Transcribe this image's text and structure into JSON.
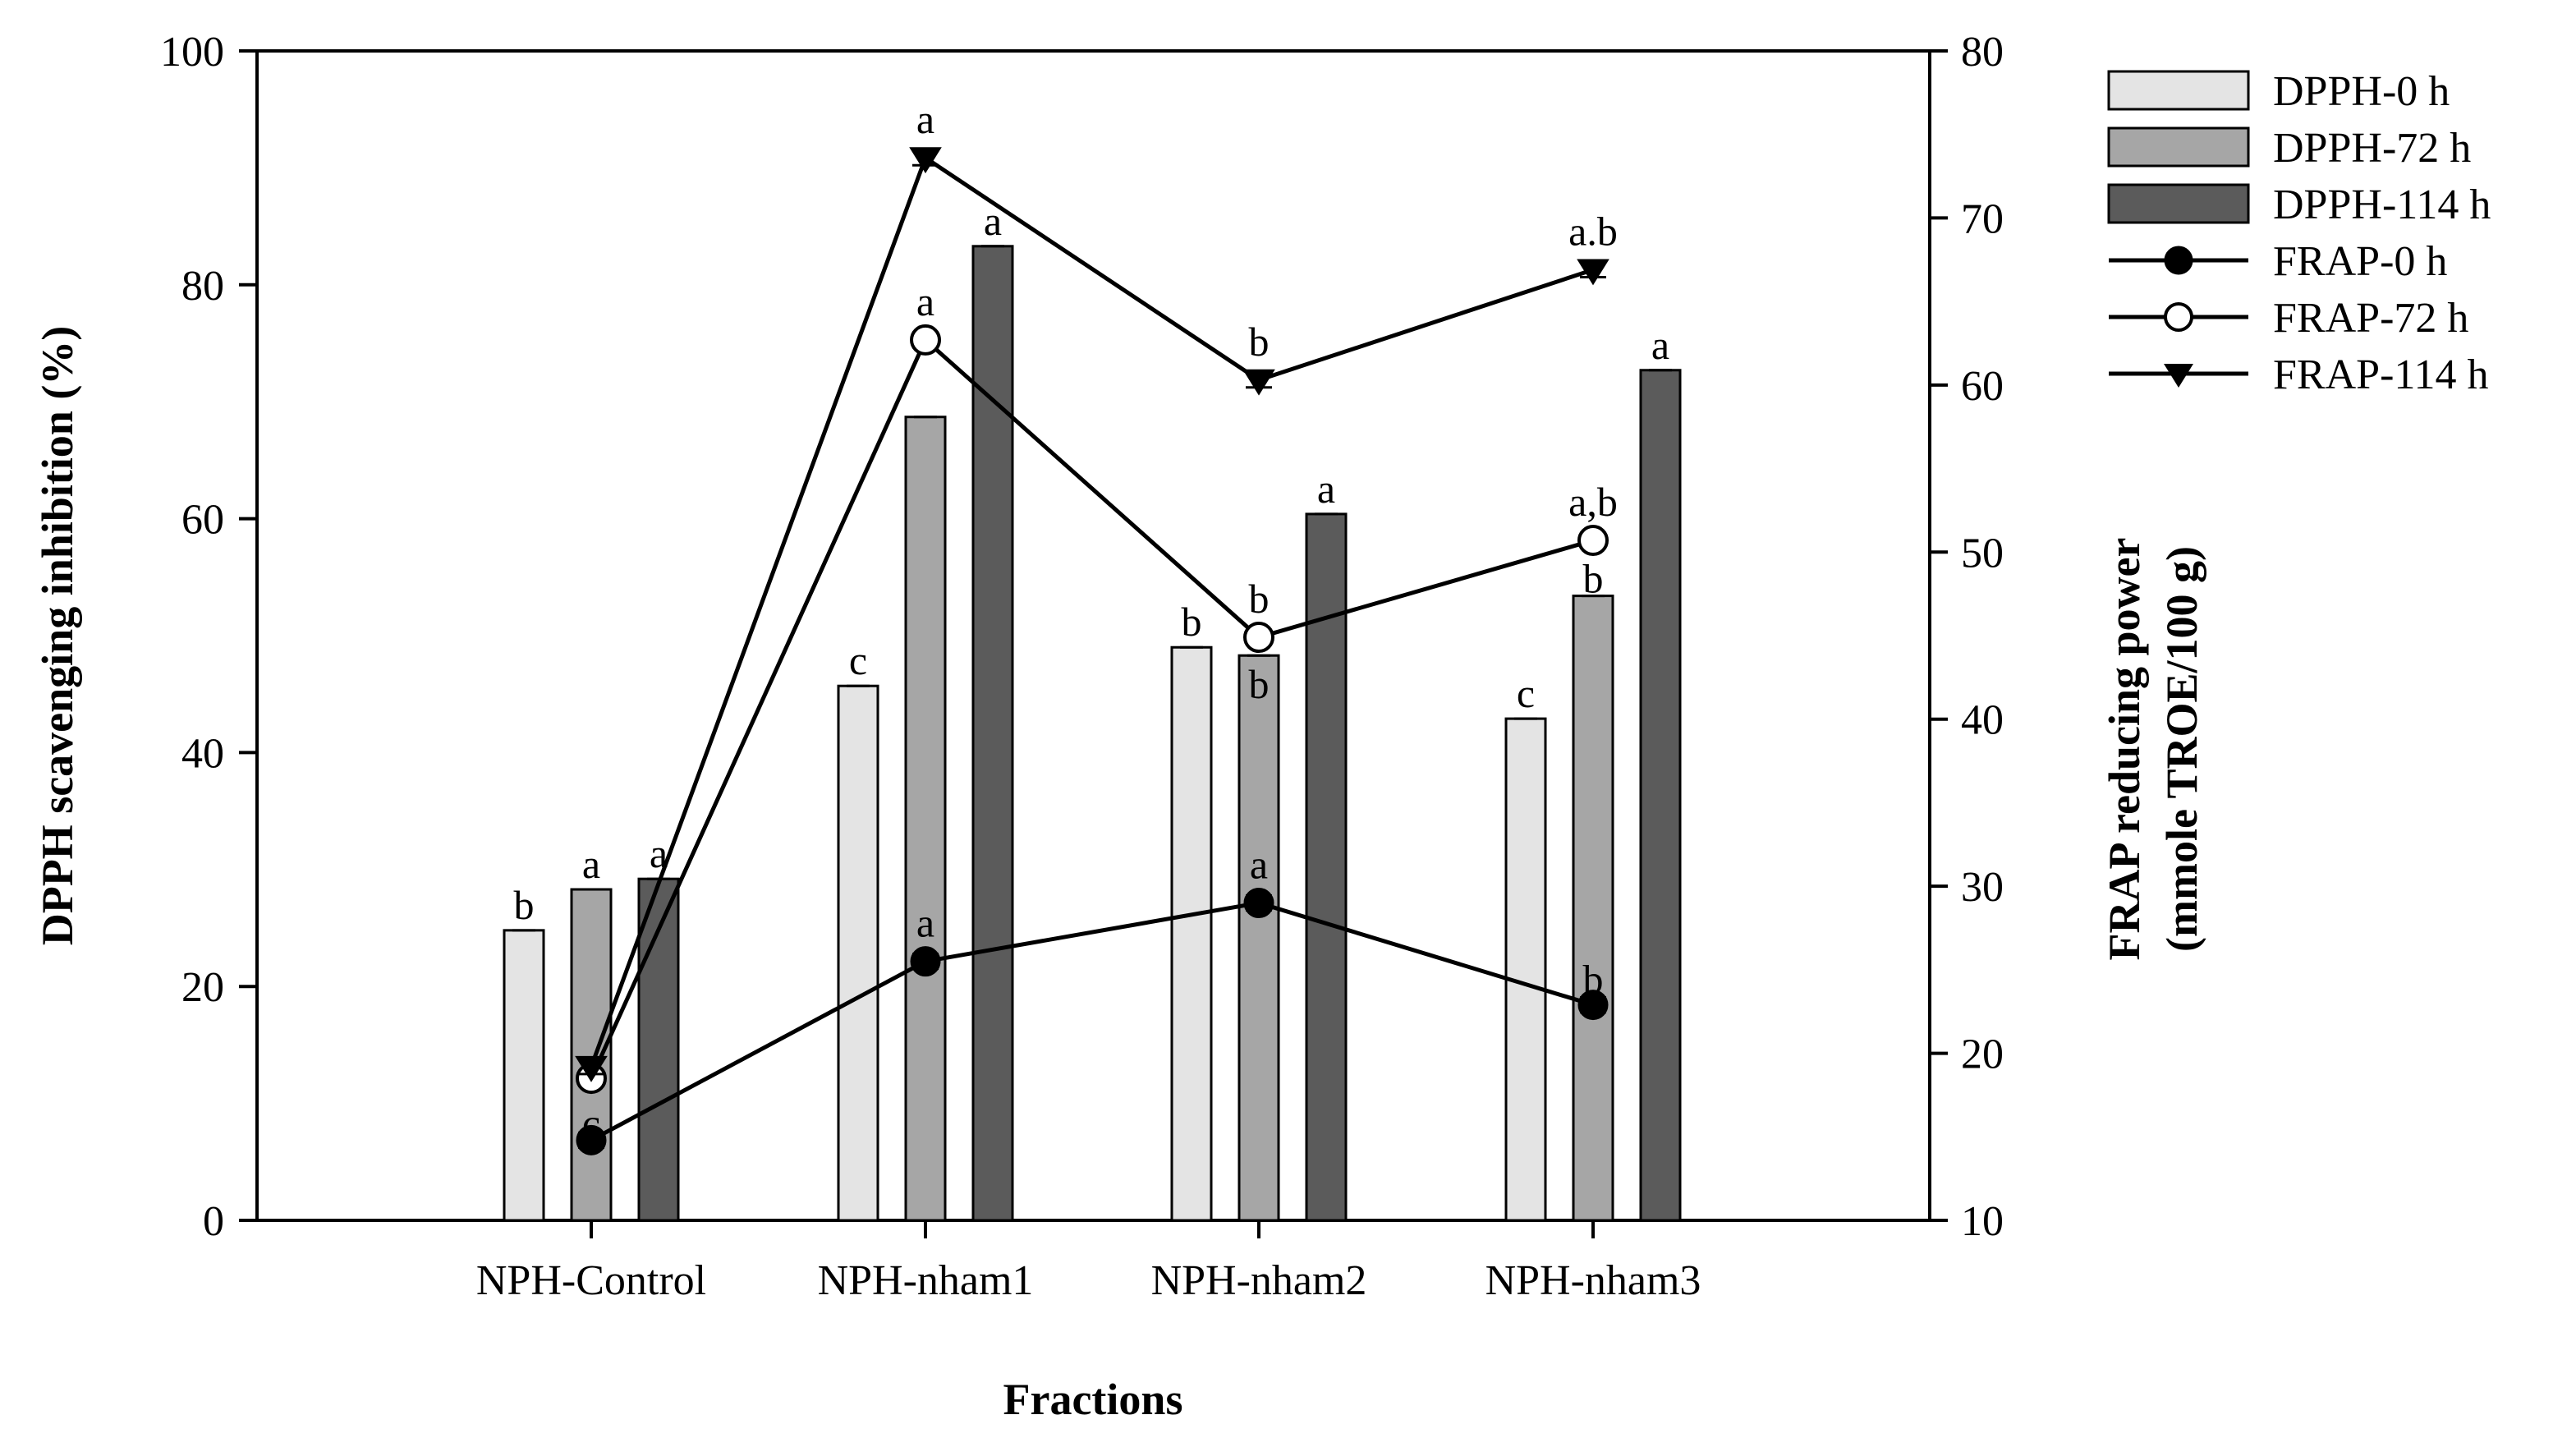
{
  "chart_data": {
    "type": "bar",
    "xlabel": "Fractions",
    "ylabel": "DPPH scavenging inhibition (%)",
    "y2label_line1": "FRAP reducing power",
    "y2label_line2": "(mmole TROE/100 g)",
    "ylim": [
      0,
      100
    ],
    "y2lim": [
      10,
      80
    ],
    "yticks": [
      "0",
      "20",
      "40",
      "60",
      "80",
      "100"
    ],
    "y2ticks": [
      "10",
      "20",
      "30",
      "40",
      "50",
      "60",
      "70",
      "80"
    ],
    "categories": [
      "NPH-Control",
      "NPH-nham1",
      "NPH-nham2",
      "NPH-nham3"
    ],
    "bar_series": [
      {
        "name": "DPPH-0 h",
        "color": "#e4e4e4",
        "values": [
          24.8,
          45.7,
          49.0,
          42.9
        ],
        "letters": [
          "b",
          "c",
          "b",
          "c"
        ]
      },
      {
        "name": "DPPH-72 h",
        "color": "#a6a6a6",
        "values": [
          28.3,
          68.7,
          48.3,
          53.4
        ],
        "letters": [
          "a",
          "",
          "b",
          "b"
        ]
      },
      {
        "name": "DPPH-114 h",
        "color": "#5b5b5b",
        "values": [
          29.2,
          83.3,
          60.4,
          72.7
        ],
        "letters": [
          "a",
          "a",
          "a",
          "a"
        ]
      }
    ],
    "line_series": [
      {
        "name": "FRAP-0 h",
        "marker": "filled-circle",
        "values": [
          14.8,
          25.5,
          29.0,
          22.9
        ],
        "letters": [
          "c",
          "a",
          "a",
          "b"
        ]
      },
      {
        "name": "FRAP-72 h",
        "marker": "open-circle",
        "values": [
          18.5,
          62.7,
          44.9,
          50.7
        ],
        "letters": [
          "",
          "a",
          "b",
          "a,b"
        ]
      },
      {
        "name": "FRAP-114 h",
        "marker": "filled-triangle-down",
        "values": [
          19.2,
          73.6,
          60.3,
          66.9
        ],
        "letters": [
          "",
          "a",
          "b",
          "a.b"
        ]
      }
    ],
    "legend_position": "top-right outside",
    "grid": false
  }
}
